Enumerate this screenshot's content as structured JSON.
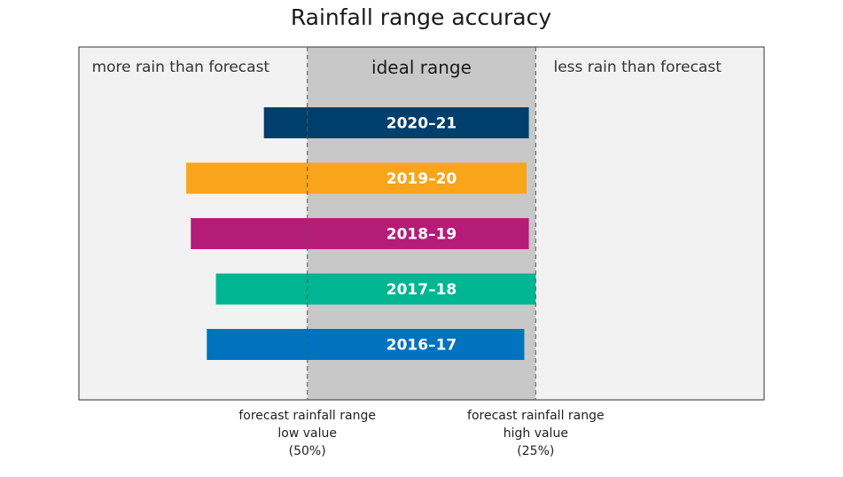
{
  "chart_data": {
    "type": "bar",
    "orientation": "horizontal",
    "title": "Rainfall range accuracy",
    "regions": {
      "left_label": "more rain than forecast",
      "middle_label": "ideal range",
      "right_label": "less rain than forecast"
    },
    "xlim": [
      -1,
      2
    ],
    "reference_lines": [
      {
        "x": 0,
        "label_lines": [
          "forecast rainfall range",
          "low value",
          "(50%)"
        ]
      },
      {
        "x": 1,
        "label_lines": [
          "forecast rainfall range",
          "high value",
          "(25%)"
        ]
      }
    ],
    "categories": [
      "2020–21",
      "2019–20",
      "2018–19",
      "2017–18",
      "2016–17"
    ],
    "series": [
      {
        "values": [
          [
            -0.19,
            0.97
          ],
          [
            -0.53,
            0.96
          ],
          [
            -0.51,
            0.97
          ],
          [
            -0.4,
            1.0
          ],
          [
            -0.44,
            0.95
          ]
        ]
      }
    ],
    "colors": [
      "#003f6e",
      "#f9a51b",
      "#b51c78",
      "#00b592",
      "#0073bf"
    ],
    "region_colors": {
      "outside": "#f2f2f2",
      "ideal": "#c8c8c9"
    },
    "grid": false,
    "legend": "none"
  }
}
